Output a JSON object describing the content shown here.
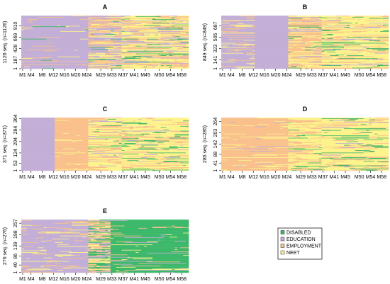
{
  "colors": {
    "DISABLED": "#3cb86a",
    "EDUCATION": "#c2aed6",
    "EMPLOYMENT": "#f9c08c",
    "NEET": "#fdf38c"
  },
  "legend": {
    "placement": "bottom-right",
    "entries": [
      "DISABLED",
      "EDUCATION",
      "EMPLOYMENT",
      "NEET"
    ]
  },
  "x_ticks": [
    "M1",
    "M4",
    "M8",
    "M12",
    "M16",
    "M20",
    "M24",
    "M29",
    "M33",
    "M37",
    "M41",
    "M45",
    "M50",
    "M54",
    "M58"
  ],
  "chart_data": [
    {
      "type": "heatmap",
      "title": "A",
      "ylabel": "1126 seq. (n=1126)",
      "y_ticks": [
        "1",
        "187",
        "428",
        "669",
        "910"
      ],
      "n_sequences": 1126,
      "months": 60,
      "state_shares": [
        {
          "period": "M1-M24",
          "EDUCATION": 0.9,
          "EMPLOYMENT": 0.06,
          "NEET": 0.03,
          "DISABLED": 0.01
        },
        {
          "period": "M25-M36",
          "EDUCATION": 0.35,
          "EMPLOYMENT": 0.35,
          "NEET": 0.25,
          "DISABLED": 0.05
        },
        {
          "period": "M37-M60",
          "EDUCATION": 0.1,
          "EMPLOYMENT": 0.35,
          "NEET": 0.45,
          "DISABLED": 0.1
        }
      ]
    },
    {
      "type": "heatmap",
      "title": "B",
      "ylabel": "849 seq. (n=849)",
      "y_ticks": [
        "1",
        "141",
        "323",
        "505",
        "687"
      ],
      "n_sequences": 849,
      "months": 60,
      "state_shares": [
        {
          "period": "M1-M12",
          "EDUCATION": 0.8,
          "EMPLOYMENT": 0.12,
          "NEET": 0.08,
          "DISABLED": 0.0
        },
        {
          "period": "M13-M24",
          "EDUCATION": 1.0,
          "EMPLOYMENT": 0.0,
          "NEET": 0.0,
          "DISABLED": 0.0
        },
        {
          "period": "M25-M36",
          "EDUCATION": 0.1,
          "EMPLOYMENT": 0.5,
          "NEET": 0.35,
          "DISABLED": 0.05
        },
        {
          "period": "M37-M60",
          "EDUCATION": 0.05,
          "EMPLOYMENT": 0.25,
          "NEET": 0.6,
          "DISABLED": 0.1
        }
      ]
    },
    {
      "type": "heatmap",
      "title": "C",
      "ylabel": "371 seq. (n=371)",
      "y_ticks": [
        "1",
        "53",
        "124",
        "204",
        "284",
        "364"
      ],
      "n_sequences": 371,
      "months": 60,
      "state_shares": [
        {
          "period": "M1-M12",
          "EDUCATION": 1.0,
          "EMPLOYMENT": 0.0,
          "NEET": 0.0,
          "DISABLED": 0.0
        },
        {
          "period": "M13-M24",
          "EDUCATION": 0.0,
          "EMPLOYMENT": 0.95,
          "NEET": 0.05,
          "DISABLED": 0.0
        },
        {
          "period": "M25-M36",
          "EDUCATION": 0.05,
          "EMPLOYMENT": 0.35,
          "NEET": 0.55,
          "DISABLED": 0.05
        },
        {
          "period": "M37-M60",
          "EDUCATION": 0.03,
          "EMPLOYMENT": 0.2,
          "NEET": 0.65,
          "DISABLED": 0.12
        }
      ]
    },
    {
      "type": "heatmap",
      "title": "D",
      "ylabel": "285 seq. (n=285)",
      "y_ticks": [
        "1",
        "41",
        "88",
        "142",
        "203",
        "264"
      ],
      "n_sequences": 285,
      "months": 60,
      "state_shares": [
        {
          "period": "M1-M24",
          "EDUCATION": 0.02,
          "EMPLOYMENT": 0.9,
          "NEET": 0.08,
          "DISABLED": 0.0
        },
        {
          "period": "M25-M36",
          "EDUCATION": 0.03,
          "EMPLOYMENT": 0.3,
          "NEET": 0.6,
          "DISABLED": 0.07
        },
        {
          "period": "M37-M60",
          "EDUCATION": 0.02,
          "EMPLOYMENT": 0.15,
          "NEET": 0.68,
          "DISABLED": 0.15
        }
      ]
    },
    {
      "type": "heatmap",
      "title": "E",
      "ylabel": "276 seq. (n=276)",
      "y_ticks": [
        "1",
        "40",
        "86",
        "139",
        "198",
        "257"
      ],
      "n_sequences": 276,
      "months": 60,
      "state_shares": [
        {
          "period": "M1-M24",
          "EDUCATION": 0.85,
          "EMPLOYMENT": 0.1,
          "NEET": 0.05,
          "DISABLED": 0.0
        },
        {
          "period": "M25-M32",
          "EDUCATION": 0.2,
          "EMPLOYMENT": 0.3,
          "NEET": 0.2,
          "DISABLED": 0.3
        },
        {
          "period": "M33-M60",
          "EDUCATION": 0.02,
          "EMPLOYMENT": 0.03,
          "NEET": 0.05,
          "DISABLED": 0.9
        }
      ]
    }
  ]
}
